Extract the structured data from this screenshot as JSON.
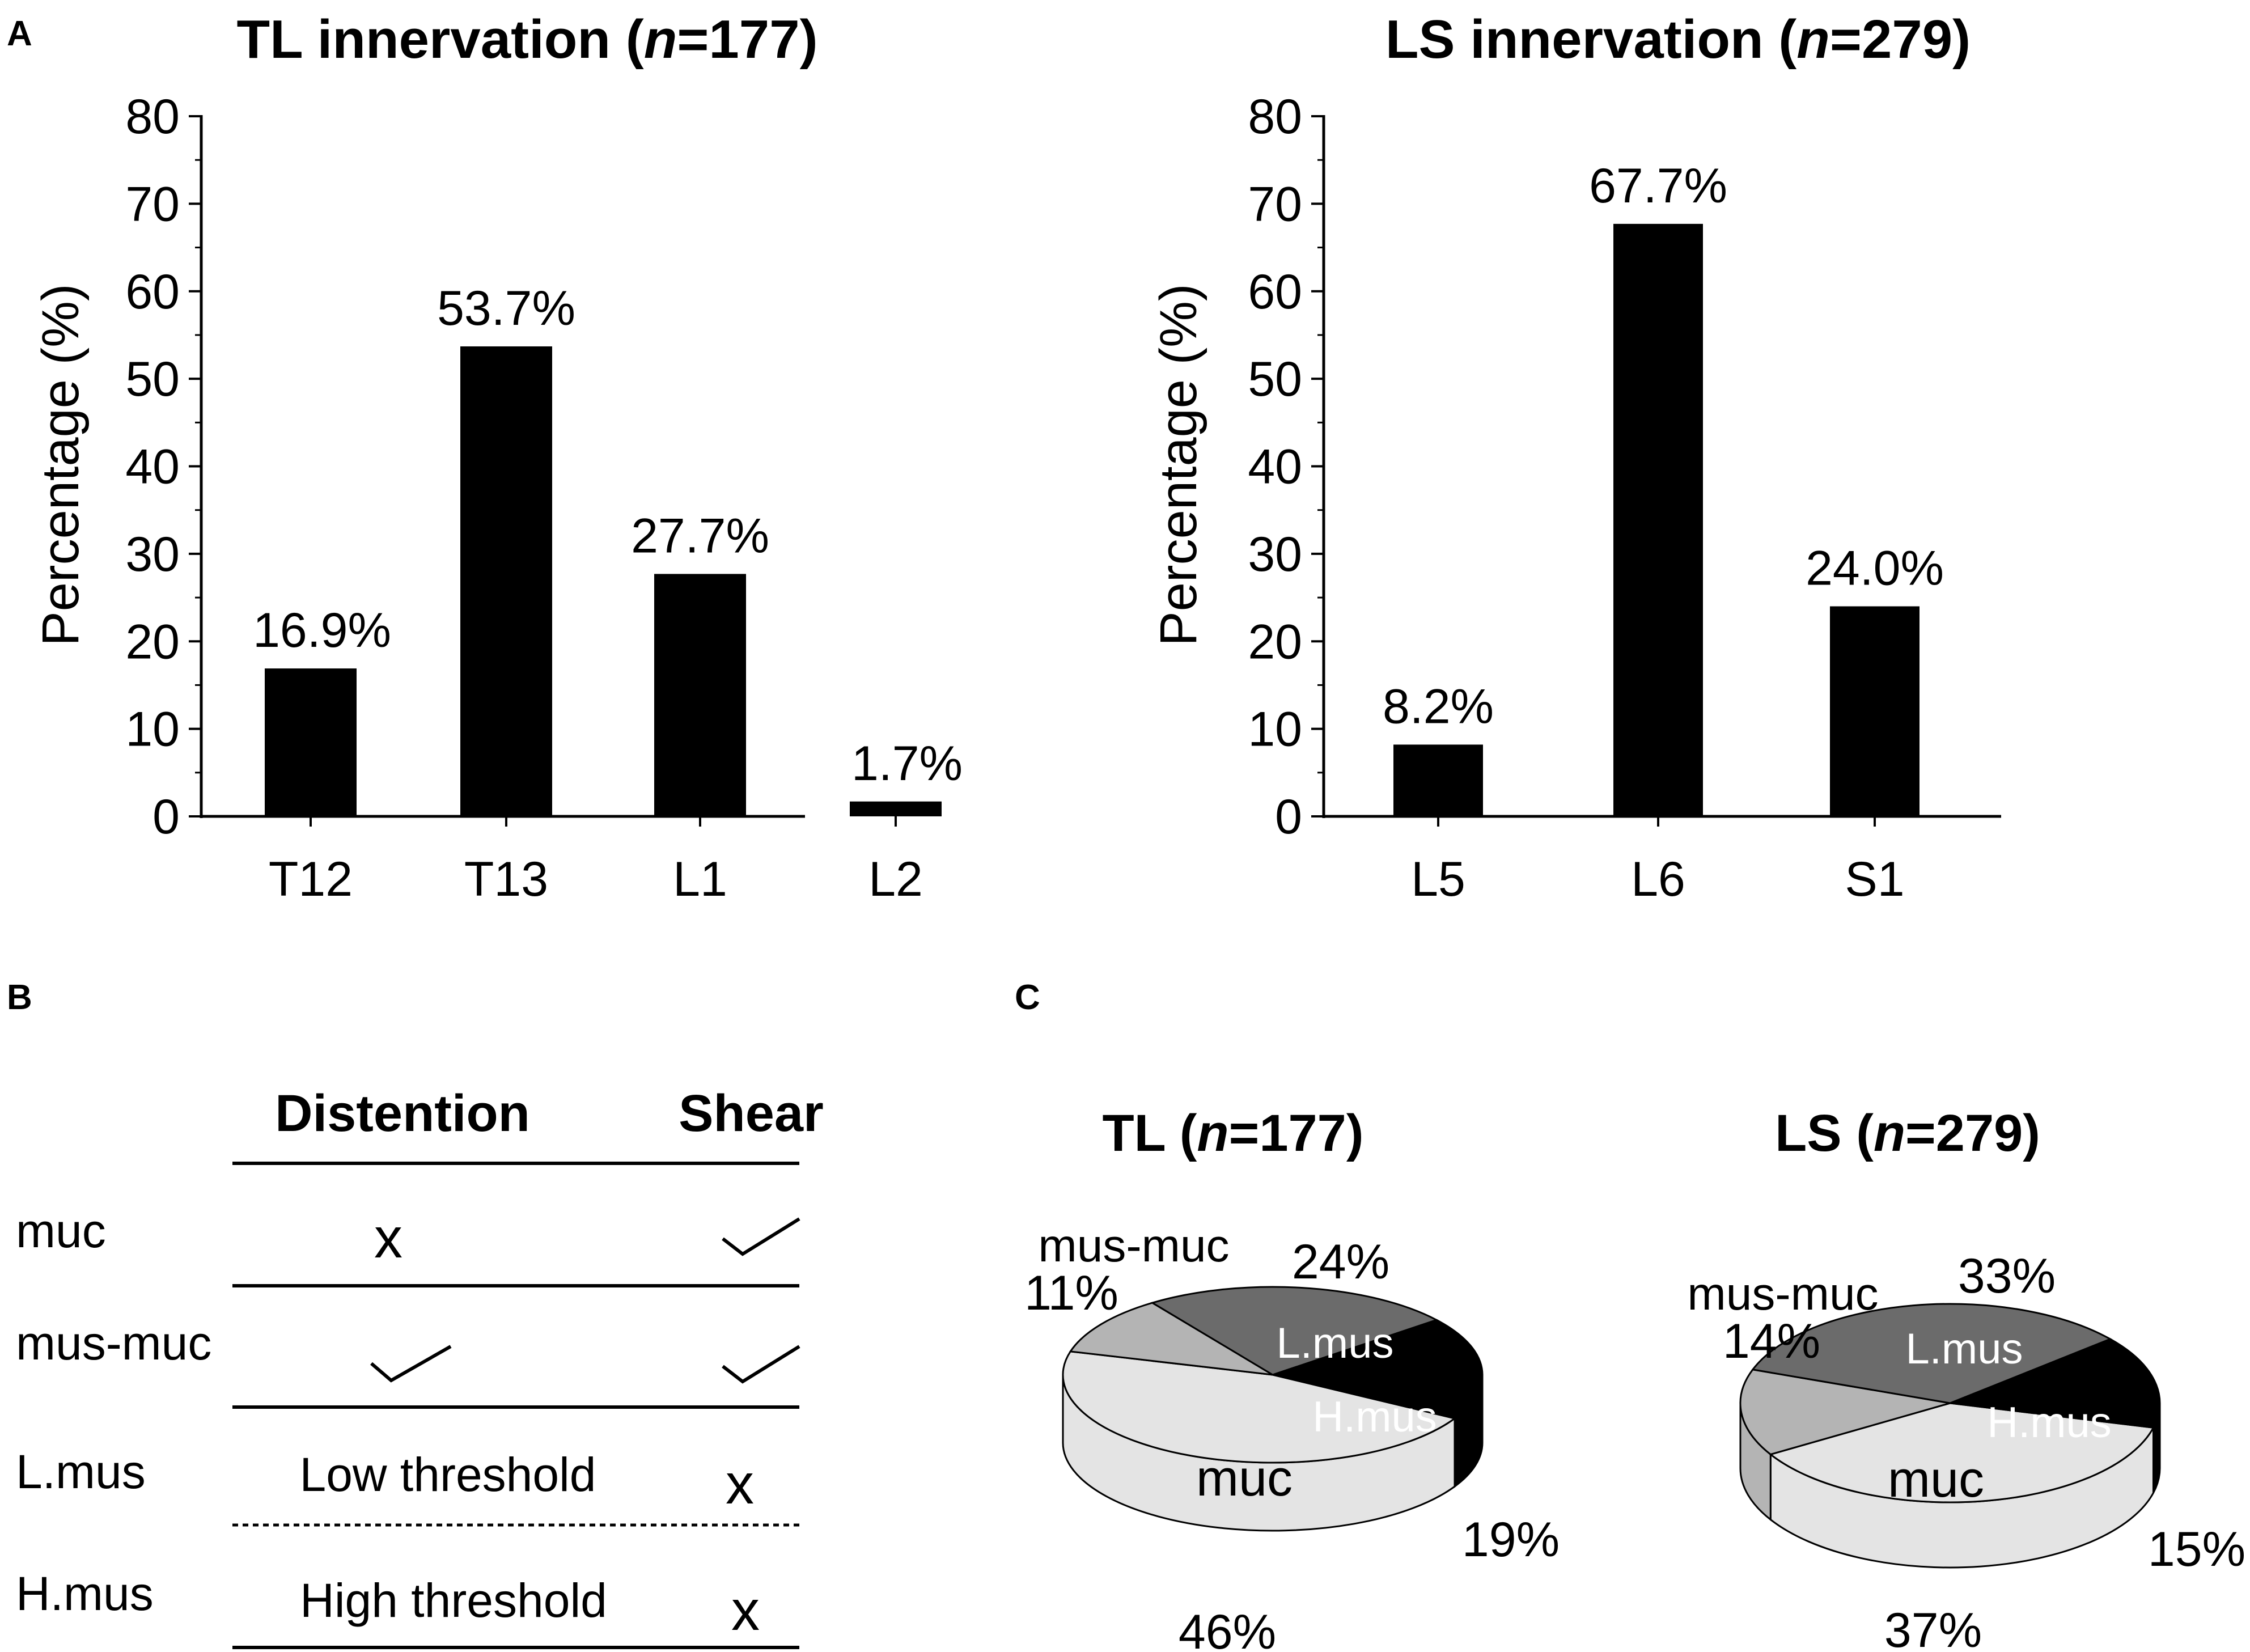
{
  "panel_labels": {
    "a": "A",
    "b": "B",
    "c": "C"
  },
  "panel_a": {
    "y_tick_labels": [
      "0",
      "10",
      "20",
      "30",
      "40",
      "50",
      "60",
      "70",
      "80"
    ]
  },
  "panel_b": {
    "headers": {
      "distention": "Distention",
      "shear": "Shear"
    },
    "rows": [
      {
        "name": "muc",
        "distention": "x",
        "distention_kind": "x",
        "shear": "check",
        "shear_kind": "check"
      },
      {
        "name": "mus-muc",
        "distention": "check",
        "distention_kind": "check",
        "shear": "check",
        "shear_kind": "check"
      },
      {
        "name": "L.mus",
        "distention": "Low threshold",
        "distention_kind": "text",
        "shear": "x",
        "shear_kind": "x"
      },
      {
        "name": "H.mus",
        "distention": "High threshold",
        "distention_kind": "text",
        "shear": "x",
        "shear_kind": "x"
      }
    ],
    "x_mark": "x"
  },
  "colors": {
    "bar": "#000000",
    "muc": "#e4e4e4",
    "mus_muc": "#b4b4b4",
    "l_mus": "#6b6b6b",
    "h_mus": "#000000"
  },
  "chart_data": [
    {
      "type": "bar",
      "title": "TL innervation (n=177)",
      "title_prefix": "TL innervation (",
      "title_n": "n",
      "title_suffix": "=177)",
      "categories": [
        "T12",
        "T13",
        "L1",
        "L2"
      ],
      "values": [
        16.9,
        53.7,
        27.7,
        1.7
      ],
      "data_labels": [
        "16.9%",
        "53.7%",
        "27.7%",
        "1.7%"
      ],
      "xlabel": "",
      "ylabel": "Percentage (%)",
      "ylim": [
        0,
        80
      ],
      "yticks": [
        0,
        10,
        20,
        30,
        40,
        50,
        60,
        70,
        80
      ],
      "grid": false
    },
    {
      "type": "bar",
      "title": "LS innervation (n=279)",
      "title_prefix": "LS innervation (",
      "title_n": "n",
      "title_suffix": "=279)",
      "categories": [
        "L5",
        "L6",
        "S1"
      ],
      "values": [
        8.2,
        67.7,
        24.0
      ],
      "data_labels": [
        "8.2%",
        "67.7%",
        "24.0%"
      ],
      "xlabel": "",
      "ylabel": "Percentage (%)",
      "ylim": [
        0,
        80
      ],
      "yticks": [
        0,
        10,
        20,
        30,
        40,
        50,
        60,
        70,
        80
      ],
      "grid": false
    },
    {
      "type": "pie",
      "title": "TL (n=177)",
      "title_prefix": "TL (",
      "title_n": "n",
      "title_suffix": "=177)",
      "labels": [
        "muc",
        "mus-muc",
        "L.mus",
        "H.mus"
      ],
      "values": [
        46,
        11,
        24,
        19
      ],
      "value_labels": [
        "46%",
        "11%",
        "24%",
        "19%"
      ]
    },
    {
      "type": "pie",
      "title": "LS (n=279)",
      "title_prefix": "LS (",
      "title_n": "n",
      "title_suffix": "=279)",
      "labels": [
        "muc",
        "mus-muc",
        "L.mus",
        "H.mus"
      ],
      "values": [
        37,
        14,
        33,
        15
      ],
      "value_labels": [
        "37%",
        "14%",
        "33%",
        "15%"
      ]
    }
  ]
}
